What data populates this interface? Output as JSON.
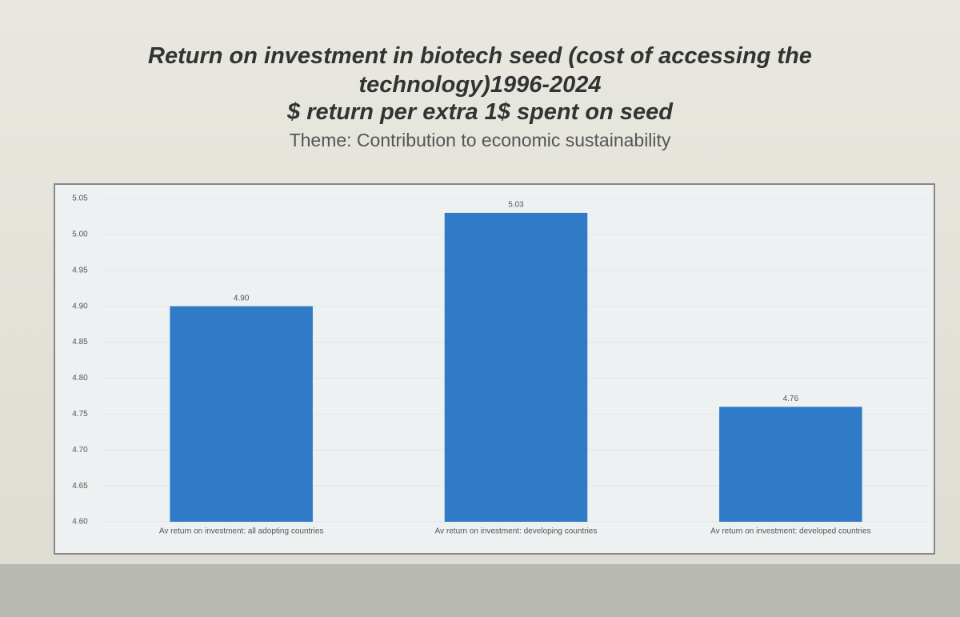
{
  "chart_data": {
    "type": "bar",
    "title": "Return on investment in biotech seed (cost of accessing the technology)1996-2024",
    "subtitle": "$ return per extra 1$ spent on seed",
    "theme": "Theme: Contribution to economic sustainability",
    "categories": [
      "Av return on investment: all adopting countries",
      "Av return on investment: developing countries",
      "Av return on investment: developed countries"
    ],
    "values": [
      4.9,
      5.03,
      4.76
    ],
    "value_labels": [
      "4.90",
      "5.03",
      "4.76"
    ],
    "color": "#2f7bc8",
    "ylim": [
      4.6,
      5.05
    ],
    "yticks": [
      {
        "value": 4.6,
        "label": "4.60"
      },
      4.65,
      {
        "value": 4.7,
        "label": "4.70"
      },
      4.75,
      {
        "value": 4.8,
        "label": "4.80"
      },
      4.85,
      {
        "value": 4.9,
        "label": "4.90"
      },
      4.95,
      {
        "value": 5.0,
        "label": "5.00"
      },
      5.05
    ],
    "grid": true
  }
}
